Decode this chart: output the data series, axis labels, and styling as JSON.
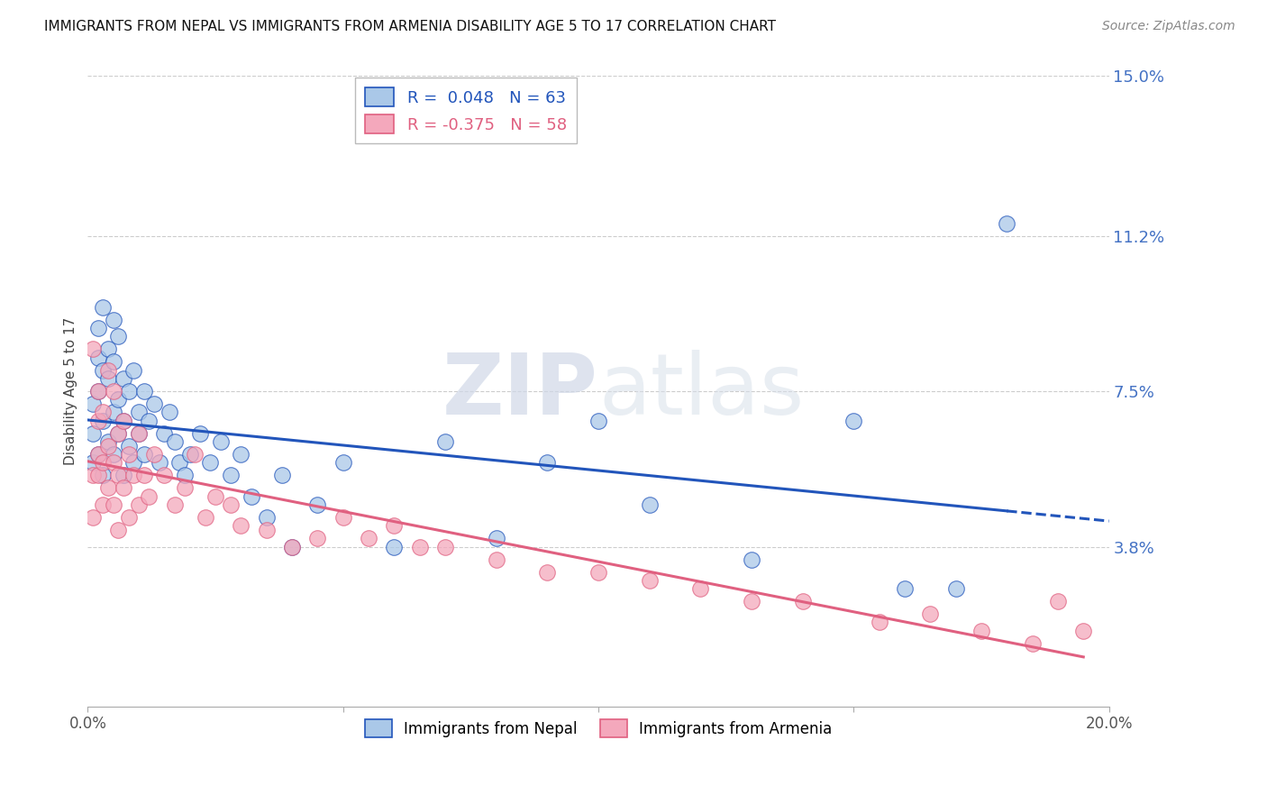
{
  "title": "IMMIGRANTS FROM NEPAL VS IMMIGRANTS FROM ARMENIA DISABILITY AGE 5 TO 17 CORRELATION CHART",
  "source": "Source: ZipAtlas.com",
  "ylabel": "Disability Age 5 to 17",
  "xlim": [
    0.0,
    0.2
  ],
  "ylim": [
    0.0,
    0.15
  ],
  "y_tick_vals_right": [
    0.15,
    0.112,
    0.075,
    0.038
  ],
  "y_tick_labels_right": [
    "15.0%",
    "11.2%",
    "7.5%",
    "3.8%"
  ],
  "grid_color": "#cccccc",
  "background_color": "#ffffff",
  "nepal_color": "#aac8e8",
  "armenia_color": "#f4a8bc",
  "nepal_line_color": "#2255bb",
  "armenia_line_color": "#e06080",
  "nepal_R": 0.048,
  "nepal_N": 63,
  "armenia_R": -0.375,
  "armenia_N": 58,
  "watermark_zip": "ZIP",
  "watermark_atlas": "atlas",
  "legend_label_nepal": "Immigrants from Nepal",
  "legend_label_armenia": "Immigrants from Armenia",
  "nepal_scatter_x": [
    0.001,
    0.001,
    0.001,
    0.002,
    0.002,
    0.002,
    0.002,
    0.003,
    0.003,
    0.003,
    0.003,
    0.004,
    0.004,
    0.004,
    0.005,
    0.005,
    0.005,
    0.005,
    0.006,
    0.006,
    0.006,
    0.007,
    0.007,
    0.007,
    0.008,
    0.008,
    0.009,
    0.009,
    0.01,
    0.01,
    0.011,
    0.011,
    0.012,
    0.013,
    0.014,
    0.015,
    0.016,
    0.017,
    0.018,
    0.019,
    0.02,
    0.022,
    0.024,
    0.026,
    0.028,
    0.03,
    0.032,
    0.035,
    0.038,
    0.04,
    0.045,
    0.05,
    0.06,
    0.07,
    0.08,
    0.09,
    0.1,
    0.11,
    0.13,
    0.15,
    0.16,
    0.17,
    0.18
  ],
  "nepal_scatter_y": [
    0.065,
    0.072,
    0.058,
    0.09,
    0.075,
    0.083,
    0.06,
    0.095,
    0.08,
    0.068,
    0.055,
    0.085,
    0.078,
    0.063,
    0.092,
    0.07,
    0.082,
    0.06,
    0.088,
    0.073,
    0.065,
    0.078,
    0.068,
    0.055,
    0.075,
    0.062,
    0.08,
    0.058,
    0.07,
    0.065,
    0.075,
    0.06,
    0.068,
    0.072,
    0.058,
    0.065,
    0.07,
    0.063,
    0.058,
    0.055,
    0.06,
    0.065,
    0.058,
    0.063,
    0.055,
    0.06,
    0.05,
    0.045,
    0.055,
    0.038,
    0.048,
    0.058,
    0.038,
    0.063,
    0.04,
    0.058,
    0.068,
    0.048,
    0.035,
    0.068,
    0.028,
    0.028,
    0.115
  ],
  "armenia_scatter_x": [
    0.001,
    0.001,
    0.001,
    0.002,
    0.002,
    0.002,
    0.002,
    0.003,
    0.003,
    0.003,
    0.004,
    0.004,
    0.004,
    0.005,
    0.005,
    0.005,
    0.006,
    0.006,
    0.006,
    0.007,
    0.007,
    0.008,
    0.008,
    0.009,
    0.01,
    0.01,
    0.011,
    0.012,
    0.013,
    0.015,
    0.017,
    0.019,
    0.021,
    0.023,
    0.025,
    0.028,
    0.03,
    0.035,
    0.04,
    0.045,
    0.05,
    0.055,
    0.06,
    0.065,
    0.07,
    0.08,
    0.09,
    0.1,
    0.11,
    0.12,
    0.13,
    0.14,
    0.155,
    0.165,
    0.175,
    0.185,
    0.19,
    0.195
  ],
  "armenia_scatter_y": [
    0.085,
    0.055,
    0.045,
    0.075,
    0.06,
    0.055,
    0.068,
    0.07,
    0.058,
    0.048,
    0.08,
    0.062,
    0.052,
    0.075,
    0.058,
    0.048,
    0.065,
    0.055,
    0.042,
    0.068,
    0.052,
    0.06,
    0.045,
    0.055,
    0.065,
    0.048,
    0.055,
    0.05,
    0.06,
    0.055,
    0.048,
    0.052,
    0.06,
    0.045,
    0.05,
    0.048,
    0.043,
    0.042,
    0.038,
    0.04,
    0.045,
    0.04,
    0.043,
    0.038,
    0.038,
    0.035,
    0.032,
    0.032,
    0.03,
    0.028,
    0.025,
    0.025,
    0.02,
    0.022,
    0.018,
    0.015,
    0.025,
    0.018
  ]
}
